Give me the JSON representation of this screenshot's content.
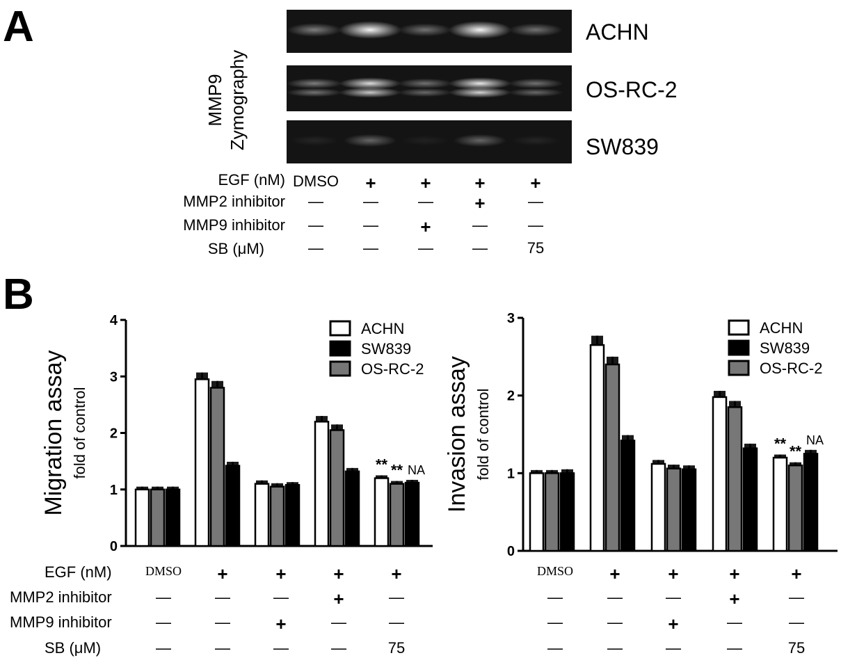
{
  "panels": {
    "a": "A",
    "b": "B"
  },
  "zymography": {
    "ylabel_line1": "MMP9",
    "ylabel_line2": "Zymography",
    "cell_lines": [
      "ACHN",
      "OS-RC-2",
      "SW839"
    ],
    "lanes": 5,
    "intensities": [
      [
        0.45,
        0.95,
        0.4,
        0.95,
        0.4
      ],
      [
        0.45,
        0.85,
        0.4,
        0.9,
        0.4
      ],
      [
        0.08,
        0.35,
        0.06,
        0.35,
        0.08
      ]
    ]
  },
  "conditions": {
    "row_labels": [
      "EGF  (nM)",
      "MMP2 inhibitor",
      "MMP9 inhibitor",
      "SB  (μM)"
    ],
    "rows": [
      [
        "DMSO",
        "+",
        "+",
        "+",
        "+"
      ],
      [
        "—",
        "—",
        "—",
        "+",
        "—"
      ],
      [
        "—",
        "—",
        "+",
        "—",
        "—"
      ],
      [
        "—",
        "—",
        "—",
        "—",
        "75"
      ]
    ]
  },
  "chart_data": [
    {
      "type": "bar",
      "ylabel": "Migration assay",
      "ylabel_sub": "fold of control",
      "ylim": [
        0,
        4
      ],
      "yticks": [
        0,
        1,
        2,
        3,
        4
      ],
      "groups": 5,
      "legend": [
        "ACHN",
        "SW839",
        "OS-RC-2"
      ],
      "series": [
        {
          "color": "#ffffff",
          "values": [
            1.0,
            2.95,
            1.1,
            2.2,
            1.2
          ],
          "errors": [
            0.05,
            0.12,
            0.06,
            0.1,
            0.05
          ]
        },
        {
          "color": "#777777",
          "values": [
            1.0,
            2.8,
            1.05,
            2.05,
            1.1
          ],
          "errors": [
            0.05,
            0.12,
            0.06,
            0.1,
            0.05
          ]
        },
        {
          "color": "#000000",
          "values": [
            1.0,
            1.42,
            1.08,
            1.32,
            1.12
          ],
          "errors": [
            0.05,
            0.07,
            0.05,
            0.06,
            0.05
          ]
        }
      ],
      "annotations": [
        "**",
        "**",
        "NA"
      ]
    },
    {
      "type": "bar",
      "ylabel": "Invasion assay",
      "ylabel_sub": "fold of control",
      "ylim": [
        0,
        3
      ],
      "yticks": [
        0,
        1,
        2,
        3
      ],
      "groups": 5,
      "legend": [
        "ACHN",
        "SW839",
        "OS-RC-2"
      ],
      "series": [
        {
          "color": "#ffffff",
          "values": [
            1.0,
            2.65,
            1.12,
            1.98,
            1.2
          ],
          "errors": [
            0.04,
            0.12,
            0.05,
            0.08,
            0.04
          ]
        },
        {
          "color": "#777777",
          "values": [
            1.0,
            2.4,
            1.06,
            1.85,
            1.1
          ],
          "errors": [
            0.04,
            0.1,
            0.05,
            0.08,
            0.04
          ]
        },
        {
          "color": "#000000",
          "values": [
            1.0,
            1.42,
            1.05,
            1.32,
            1.25
          ],
          "errors": [
            0.05,
            0.07,
            0.05,
            0.06,
            0.05
          ]
        }
      ],
      "annotations": [
        "**",
        "**",
        "NA"
      ]
    }
  ]
}
